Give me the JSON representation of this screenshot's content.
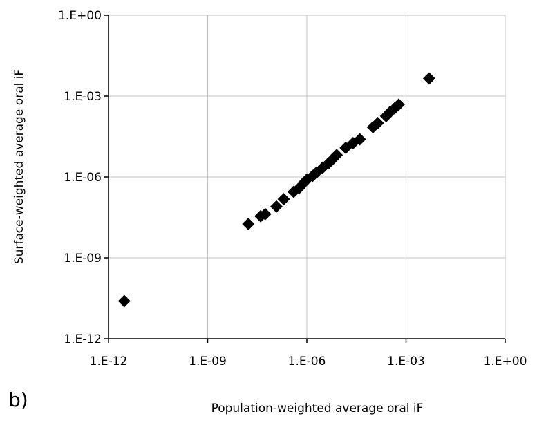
{
  "chart_data": {
    "type": "scatter",
    "xlabel": "Population-weighted average oral iF",
    "ylabel": "Surface-weighted average oral iF",
    "panel_label": "b)",
    "x_scale": "log",
    "y_scale": "log",
    "xlim": [
      1e-12,
      1
    ],
    "ylim": [
      1e-12,
      1
    ],
    "x_tick_labels": [
      "1.E-12",
      "1.E-09",
      "1.E-06",
      "1.E-03",
      "1.E+00"
    ],
    "y_tick_labels": [
      "1.E-12",
      "1.E-09",
      "1.E-06",
      "1.E-03",
      "1.E+00"
    ],
    "x_tick_values": [
      1e-12,
      1e-09,
      1e-06,
      0.001,
      1
    ],
    "y_tick_values": [
      1e-12,
      1e-09,
      1e-06,
      0.001,
      1
    ],
    "grid": true,
    "marker": "diamond",
    "marker_color": "#000000",
    "points": [
      {
        "x": 3e-12,
        "y": 2.5e-11
      },
      {
        "x": 1.7e-08,
        "y": 1.8e-08
      },
      {
        "x": 4e-08,
        "y": 3.5e-08
      },
      {
        "x": 5.5e-08,
        "y": 4.2e-08
      },
      {
        "x": 1.2e-07,
        "y": 8e-08
      },
      {
        "x": 2e-07,
        "y": 1.5e-07
      },
      {
        "x": 4e-07,
        "y": 2.8e-07
      },
      {
        "x": 6e-07,
        "y": 4e-07
      },
      {
        "x": 8e-07,
        "y": 6e-07
      },
      {
        "x": 1e-06,
        "y": 8e-07
      },
      {
        "x": 1.5e-06,
        "y": 1.1e-06
      },
      {
        "x": 2e-06,
        "y": 1.5e-06
      },
      {
        "x": 3e-06,
        "y": 2.2e-06
      },
      {
        "x": 4.5e-06,
        "y": 3.2e-06
      },
      {
        "x": 6e-06,
        "y": 4.5e-06
      },
      {
        "x": 8e-06,
        "y": 6.5e-06
      },
      {
        "x": 1.5e-05,
        "y": 1.2e-05
      },
      {
        "x": 2.5e-05,
        "y": 1.8e-05
      },
      {
        "x": 4e-05,
        "y": 2.5e-05
      },
      {
        "x": 0.0001,
        "y": 7e-05
      },
      {
        "x": 0.00014,
        "y": 0.0001
      },
      {
        "x": 0.00025,
        "y": 0.00018
      },
      {
        "x": 0.00032,
        "y": 0.00025
      },
      {
        "x": 0.00045,
        "y": 0.00035
      },
      {
        "x": 0.0006,
        "y": 0.00048
      },
      {
        "x": 0.005,
        "y": 0.0045
      }
    ]
  }
}
